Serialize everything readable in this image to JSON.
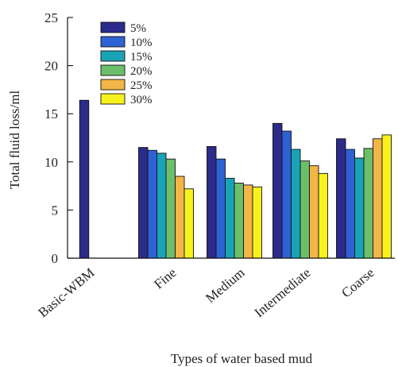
{
  "chart_data": {
    "type": "bar",
    "title": "",
    "xlabel": "Types of water based mud",
    "ylabel": "Total fluid loss/ml",
    "ylim": [
      0,
      25
    ],
    "yticks": [
      0,
      5,
      10,
      15,
      20,
      25
    ],
    "grid": false,
    "legend_placement": "top-left",
    "categories": [
      "Basic-WBM",
      "Fine",
      "Medium",
      "Intermediate",
      "Coarse"
    ],
    "series": [
      {
        "name": "5%",
        "color": "#2b2b8c",
        "values": [
          16.4,
          11.5,
          11.6,
          14.0,
          12.4
        ]
      },
      {
        "name": "10%",
        "color": "#2d62d2",
        "values": [
          null,
          11.2,
          10.3,
          13.2,
          11.3
        ]
      },
      {
        "name": "15%",
        "color": "#1aa3b8",
        "values": [
          null,
          10.9,
          8.3,
          11.3,
          10.4
        ]
      },
      {
        "name": "20%",
        "color": "#6cbf6a",
        "values": [
          null,
          10.3,
          7.8,
          10.1,
          11.4
        ]
      },
      {
        "name": "25%",
        "color": "#f2b548",
        "values": [
          null,
          8.5,
          7.6,
          9.6,
          12.4
        ]
      },
      {
        "name": "30%",
        "color": "#f7f21c",
        "values": [
          null,
          7.2,
          7.4,
          8.8,
          12.8
        ]
      }
    ]
  }
}
